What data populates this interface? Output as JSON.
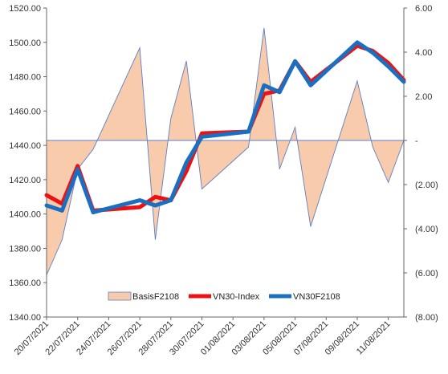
{
  "chart_data": {
    "type": "line",
    "x": [
      "20/07/2021",
      "21/07/2021",
      "22/07/2021",
      "23/07/2021",
      "26/07/2021",
      "27/07/2021",
      "28/07/2021",
      "29/07/2021",
      "30/07/2021",
      "02/08/2021",
      "03/08/2021",
      "04/08/2021",
      "05/08/2021",
      "06/08/2021",
      "09/08/2021",
      "10/08/2021",
      "11/08/2021",
      "12/08/2021"
    ],
    "x_tick_labels": [
      "20/07/2021",
      "22/07/2021",
      "24/07/2021",
      "26/07/2021",
      "28/07/2021",
      "30/07/2021",
      "01/08/2021",
      "03/08/2021",
      "05/08/2021",
      "07/08/2021",
      "09/08/2021",
      "11/08/2021"
    ],
    "x_tick_dates": [
      "20/07/2021",
      "22/07/2021",
      "24/07/2021",
      "26/07/2021",
      "28/07/2021",
      "30/07/2021",
      "01/08/2021",
      "03/08/2021",
      "05/08/2021",
      "07/08/2021",
      "09/08/2021",
      "11/08/2021"
    ],
    "x_range": [
      "20/07/2021",
      "12/08/2021"
    ],
    "y_left": {
      "range": [
        1340,
        1520
      ],
      "step": 20,
      "tick_labels": [
        "1340.00",
        "1360.00",
        "1380.00",
        "1400.00",
        "1420.00",
        "1440.00",
        "1460.00",
        "1480.00",
        "1500.00",
        "1520.00"
      ]
    },
    "y_right": {
      "range": [
        -8,
        6
      ],
      "step": 2,
      "tick_labels": [
        "(8.00)",
        "(6.00)",
        "(4.00)",
        "(2.00)",
        "-",
        "2.00",
        "4.00",
        "6.00"
      ]
    },
    "series": [
      {
        "name": "BasisF2108",
        "type": "area",
        "axis": "right",
        "color": "#f8cbad",
        "stroke": "#5b7fc6",
        "x": [
          "20/07/2021",
          "21/07/2021",
          "22/07/2021",
          "23/07/2021",
          "26/07/2021",
          "27/07/2021",
          "28/07/2021",
          "29/07/2021",
          "30/07/2021",
          "02/08/2021",
          "03/08/2021",
          "04/08/2021",
          "05/08/2021",
          "06/08/2021",
          "09/08/2021",
          "10/08/2021",
          "11/08/2021",
          "12/08/2021"
        ],
        "values": [
          -6.1,
          -4.5,
          -1.3,
          -0.4,
          4.2,
          -4.5,
          1.0,
          3.6,
          -2.2,
          -0.3,
          5.1,
          -1.3,
          0.6,
          -3.9,
          2.7,
          -0.3,
          -1.9,
          0.0
        ]
      },
      {
        "name": "VN30-Index",
        "type": "line",
        "axis": "left",
        "color": "#ee1111",
        "x": [
          "20/07/2021",
          "21/07/2021",
          "22/07/2021",
          "23/07/2021",
          "26/07/2021",
          "27/07/2021",
          "28/07/2021",
          "29/07/2021",
          "30/07/2021",
          "02/08/2021",
          "03/08/2021",
          "04/08/2021",
          "05/08/2021",
          "06/08/2021",
          "09/08/2021",
          "10/08/2021",
          "11/08/2021",
          "12/08/2021"
        ],
        "values": [
          1411,
          1406,
          1428,
          1402,
          1404,
          1410,
          1408,
          1425,
          1447,
          1448,
          1470,
          1472,
          1489,
          1477,
          1498,
          1495,
          1488,
          1478
        ]
      },
      {
        "name": "VN30F2108",
        "type": "line",
        "axis": "left",
        "color": "#1a6fc0",
        "x": [
          "20/07/2021",
          "21/07/2021",
          "22/07/2021",
          "23/07/2021",
          "26/07/2021",
          "27/07/2021",
          "28/07/2021",
          "29/07/2021",
          "30/07/2021",
          "02/08/2021",
          "03/08/2021",
          "04/08/2021",
          "05/08/2021",
          "06/08/2021",
          "09/08/2021",
          "10/08/2021",
          "11/08/2021",
          "12/08/2021"
        ],
        "values": [
          1405,
          1402,
          1426,
          1401,
          1408,
          1405,
          1408,
          1430,
          1445,
          1448,
          1475,
          1471,
          1489,
          1475,
          1500,
          1494,
          1486,
          1477
        ]
      }
    ],
    "legend_position": "bottom-center",
    "grid": false
  }
}
